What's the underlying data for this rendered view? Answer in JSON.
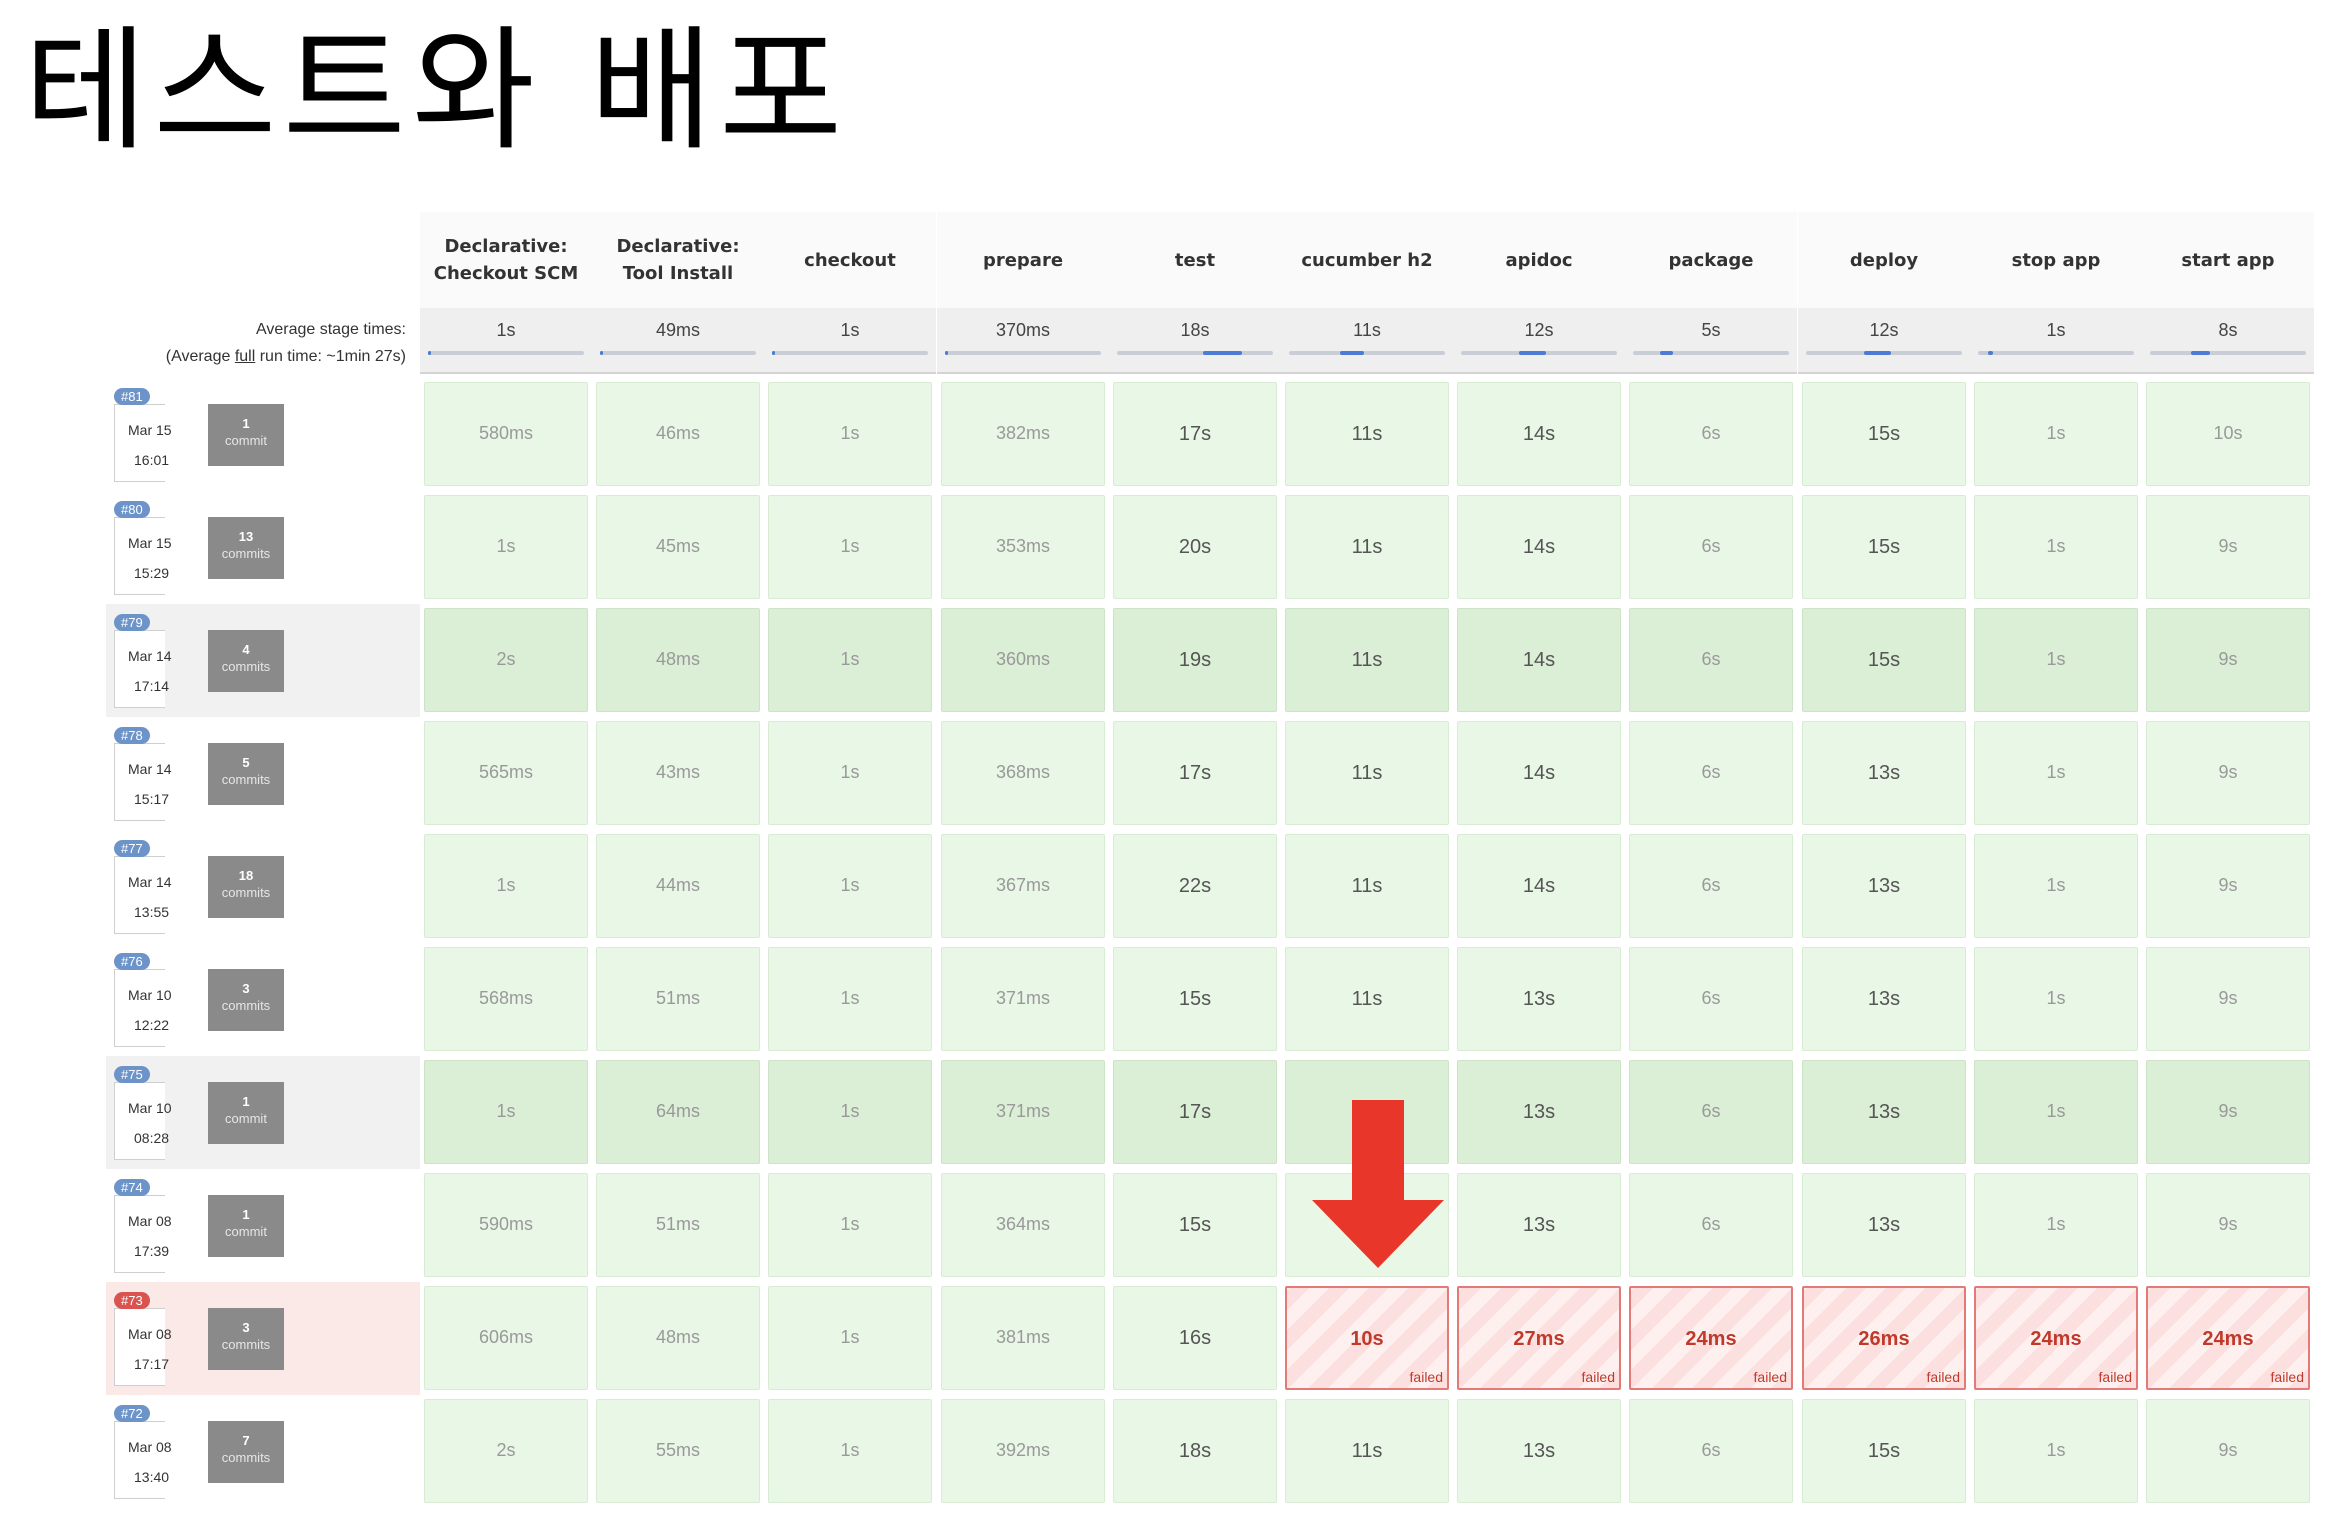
{
  "slide": {
    "title": "테스트와 배포"
  },
  "avg": {
    "label_line1": "Average stage times:",
    "label_pre": "(Average ",
    "label_link": "full",
    "label_post": " run time: ~1min 27s)"
  },
  "stages": [
    {
      "name": "Declarative:\nCheckout SCM",
      "avg": "1s",
      "bar": 0.0
    },
    {
      "name": "Declarative:\nTool Install",
      "avg": "49ms",
      "bar": 0.0
    },
    {
      "name": "checkout",
      "avg": "1s",
      "bar": 0.0
    },
    {
      "name": "prepare",
      "avg": "370ms",
      "bar": 0.0
    },
    {
      "name": "test",
      "avg": "18s",
      "bar": 0.25
    },
    {
      "name": "cucumber h2",
      "avg": "11s",
      "bar": 0.15
    },
    {
      "name": "apidoc",
      "avg": "12s",
      "bar": 0.17
    },
    {
      "name": "package",
      "avg": "5s",
      "bar": 0.08
    },
    {
      "name": "deploy",
      "avg": "12s",
      "bar": 0.17
    },
    {
      "name": "stop app",
      "avg": "1s",
      "bar": 0.03
    },
    {
      "name": "start app",
      "avg": "8s",
      "bar": 0.12
    }
  ],
  "builds": [
    {
      "num": "#81",
      "date": "Mar 15",
      "time": "16:01",
      "commits": "1",
      "commit_word": "commit",
      "status": "success",
      "shaded": false,
      "cells": [
        "580ms",
        "46ms",
        "1s",
        "382ms",
        "17s",
        "11s",
        "14s",
        "6s",
        "15s",
        "1s",
        "10s"
      ]
    },
    {
      "num": "#80",
      "date": "Mar 15",
      "time": "15:29",
      "commits": "13",
      "commit_word": "commits",
      "status": "success",
      "shaded": false,
      "cells": [
        "1s",
        "45ms",
        "1s",
        "353ms",
        "20s",
        "11s",
        "14s",
        "6s",
        "15s",
        "1s",
        "9s"
      ]
    },
    {
      "num": "#79",
      "date": "Mar 14",
      "time": "17:14",
      "commits": "4",
      "commit_word": "commits",
      "status": "success",
      "shaded": true,
      "cells": [
        "2s",
        "48ms",
        "1s",
        "360ms",
        "19s",
        "11s",
        "14s",
        "6s",
        "15s",
        "1s",
        "9s"
      ]
    },
    {
      "num": "#78",
      "date": "Mar 14",
      "time": "15:17",
      "commits": "5",
      "commit_word": "commits",
      "status": "success",
      "shaded": false,
      "cells": [
        "565ms",
        "43ms",
        "1s",
        "368ms",
        "17s",
        "11s",
        "14s",
        "6s",
        "13s",
        "1s",
        "9s"
      ]
    },
    {
      "num": "#77",
      "date": "Mar 14",
      "time": "13:55",
      "commits": "18",
      "commit_word": "commits",
      "status": "success",
      "shaded": false,
      "cells": [
        "1s",
        "44ms",
        "1s",
        "367ms",
        "22s",
        "11s",
        "14s",
        "6s",
        "13s",
        "1s",
        "9s"
      ]
    },
    {
      "num": "#76",
      "date": "Mar 10",
      "time": "12:22",
      "commits": "3",
      "commit_word": "commits",
      "status": "success",
      "shaded": false,
      "cells": [
        "568ms",
        "51ms",
        "1s",
        "371ms",
        "15s",
        "11s",
        "13s",
        "6s",
        "13s",
        "1s",
        "9s"
      ]
    },
    {
      "num": "#75",
      "date": "Mar 10",
      "time": "08:28",
      "commits": "1",
      "commit_word": "commit",
      "status": "success",
      "shaded": true,
      "cells": [
        "1s",
        "64ms",
        "1s",
        "371ms",
        "17s",
        "",
        "13s",
        "6s",
        "13s",
        "1s",
        "9s"
      ]
    },
    {
      "num": "#74",
      "date": "Mar 08",
      "time": "17:39",
      "commits": "1",
      "commit_word": "commit",
      "status": "success",
      "shaded": false,
      "cells": [
        "590ms",
        "51ms",
        "1s",
        "364ms",
        "15s",
        "",
        "13s",
        "6s",
        "13s",
        "1s",
        "9s"
      ]
    },
    {
      "num": "#73",
      "date": "Mar 08",
      "time": "17:17",
      "commits": "3",
      "commit_word": "commits",
      "status": "failed",
      "shaded": false,
      "cells": [
        "606ms",
        "48ms",
        "1s",
        "381ms",
        "16s",
        "10s",
        "27ms",
        "24ms",
        "26ms",
        "24ms",
        "24ms"
      ],
      "failed_from": 5,
      "failed_label": "failed"
    },
    {
      "num": "#72",
      "date": "Mar 08",
      "time": "13:40",
      "commits": "7",
      "commit_word": "commits",
      "status": "success",
      "shaded": false,
      "cells": [
        "2s",
        "55ms",
        "1s",
        "392ms",
        "18s",
        "11s",
        "13s",
        "6s",
        "15s",
        "1s",
        "9s"
      ]
    }
  ],
  "colors": {
    "arrow": "#e8372a",
    "fail_border": "#e47a78",
    "success_cell": "#e9f8e6",
    "avg_bar": "#4b7bd3"
  }
}
